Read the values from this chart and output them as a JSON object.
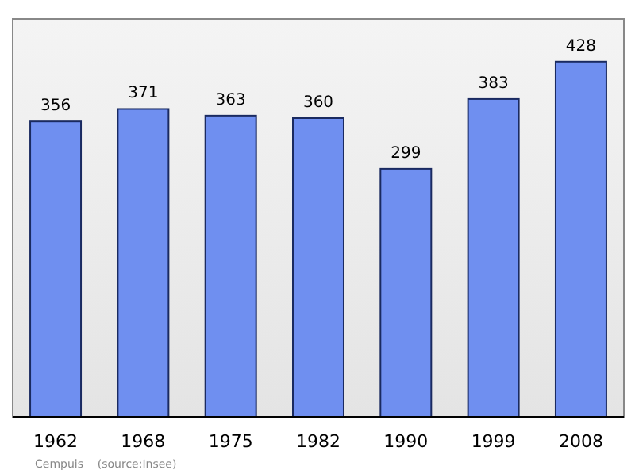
{
  "chart_data": {
    "type": "bar",
    "categories": [
      "1962",
      "1968",
      "1975",
      "1982",
      "1990",
      "1999",
      "2008"
    ],
    "values": [
      356,
      371,
      363,
      360,
      299,
      383,
      428
    ],
    "color": "#6f8ff0",
    "data_labels": true,
    "grid": false,
    "annotations": [
      "Cempuis    (source:Insee)"
    ]
  }
}
